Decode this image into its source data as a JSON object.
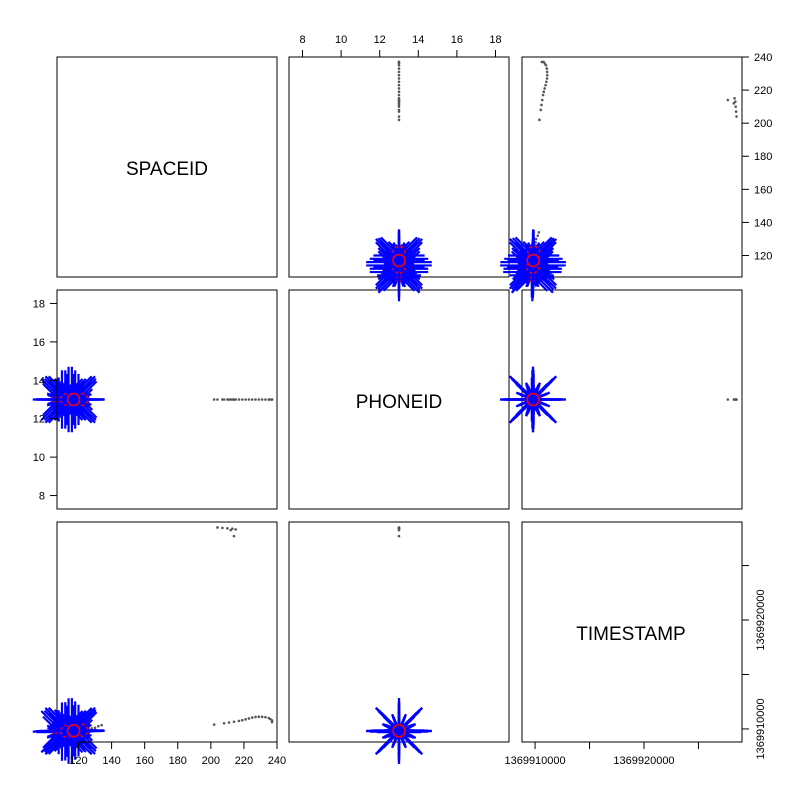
{
  "chart_data": {
    "type": "scatter",
    "variables": [
      "SPACEID",
      "PHONEID",
      "TIMESTAMP"
    ],
    "ranges": {
      "SPACEID": [
        107,
        240
      ],
      "PHONEID": [
        7.3,
        18.7
      ],
      "TIMESTAMP": [
        1369908800,
        1369929000
      ]
    },
    "ticks": {
      "SPACEID": [
        120,
        140,
        160,
        180,
        200,
        220,
        240
      ],
      "PHONEID": [
        8,
        10,
        12,
        14,
        16,
        18
      ],
      "TIMESTAMP": [
        1369910000,
        1369915000,
        1369920000,
        1369925000
      ]
    },
    "tick_labels": {
      "SPACEID": [
        "120",
        "140",
        "160",
        "180",
        "200",
        "220",
        "240"
      ],
      "PHONEID": [
        "8",
        "10",
        "12",
        "14",
        "16",
        "18"
      ],
      "TIMESTAMP": [
        "1369910000",
        "1369920000"
      ]
    },
    "timestamp_labeled_ticks": [
      1369910000,
      1369920000
    ],
    "colors": {
      "points": "#555555",
      "sunflower": "#0000ff",
      "center": "#ff0000"
    },
    "cluster_center": {
      "SPACEID": 116,
      "PHONEID": 13,
      "TIMESTAMP": 1369909800
    },
    "sparse_points": [
      {
        "SPACEID": 202,
        "PHONEID": 13,
        "TIMESTAMP": 1369910400
      },
      {
        "SPACEID": 208,
        "PHONEID": 13,
        "TIMESTAMP": 1369910520
      },
      {
        "SPACEID": 211,
        "PHONEID": 13,
        "TIMESTAMP": 1369910590
      },
      {
        "SPACEID": 214,
        "PHONEID": 13,
        "TIMESTAMP": 1369910660
      },
      {
        "SPACEID": 217,
        "PHONEID": 13,
        "TIMESTAMP": 1369910740
      },
      {
        "SPACEID": 219,
        "PHONEID": 13,
        "TIMESTAMP": 1369910800
      },
      {
        "SPACEID": 221,
        "PHONEID": 13,
        "TIMESTAMP": 1369910880
      },
      {
        "SPACEID": 223,
        "PHONEID": 13,
        "TIMESTAMP": 1369910960
      },
      {
        "SPACEID": 225,
        "PHONEID": 13,
        "TIMESTAMP": 1369911040
      },
      {
        "SPACEID": 227,
        "PHONEID": 13,
        "TIMESTAMP": 1369911100
      },
      {
        "SPACEID": 229,
        "PHONEID": 13,
        "TIMESTAMP": 1369911120
      },
      {
        "SPACEID": 231,
        "PHONEID": 13,
        "TIMESTAMP": 1369911110
      },
      {
        "SPACEID": 233,
        "PHONEID": 13,
        "TIMESTAMP": 1369911080
      },
      {
        "SPACEID": 235,
        "PHONEID": 13,
        "TIMESTAMP": 1369911000
      },
      {
        "SPACEID": 236,
        "PHONEID": 13,
        "TIMESTAMP": 1369910900
      },
      {
        "SPACEID": 237,
        "PHONEID": 13,
        "TIMESTAMP": 1369910780
      },
      {
        "SPACEID": 237,
        "PHONEID": 13,
        "TIMESTAMP": 1369910620
      },
      {
        "SPACEID": 204,
        "PHONEID": 13,
        "TIMESTAMP": 1369928500
      },
      {
        "SPACEID": 207,
        "PHONEID": 13,
        "TIMESTAMP": 1369928460
      },
      {
        "SPACEID": 210,
        "PHONEID": 13,
        "TIMESTAMP": 1369928420
      },
      {
        "SPACEID": 213,
        "PHONEID": 13,
        "TIMESTAMP": 1369928390
      },
      {
        "SPACEID": 215,
        "PHONEID": 13,
        "TIMESTAMP": 1369928320
      },
      {
        "SPACEID": 212,
        "PHONEID": 13,
        "TIMESTAMP": 1369928250
      },
      {
        "SPACEID": 214,
        "PHONEID": 13,
        "TIMESTAMP": 1369927700
      },
      {
        "SPACEID": 122,
        "PHONEID": 13,
        "TIMESTAMP": 1369909900
      },
      {
        "SPACEID": 124,
        "PHONEID": 13,
        "TIMESTAMP": 1369909950
      },
      {
        "SPACEID": 126,
        "PHONEID": 13,
        "TIMESTAMP": 1369910000
      },
      {
        "SPACEID": 128,
        "PHONEID": 13,
        "TIMESTAMP": 1369910050
      },
      {
        "SPACEID": 130,
        "PHONEID": 13,
        "TIMESTAMP": 1369910100
      },
      {
        "SPACEID": 132,
        "PHONEID": 13,
        "TIMESTAMP": 1369910250
      },
      {
        "SPACEID": 134,
        "PHONEID": 13,
        "TIMESTAMP": 1369910350
      }
    ],
    "sunflowers": [
      {
        "SPACEID": 108,
        "PHONEID": 13,
        "TIMESTAMP": 1369909700,
        "petals": 10
      },
      {
        "SPACEID": 110,
        "PHONEID": 13,
        "TIMESTAMP": 1369909750,
        "petals": 14
      },
      {
        "SPACEID": 112,
        "PHONEID": 13,
        "TIMESTAMP": 1369909780,
        "petals": 14
      },
      {
        "SPACEID": 114,
        "PHONEID": 13,
        "TIMESTAMP": 1369909800,
        "petals": 16
      },
      {
        "SPACEID": 116,
        "PHONEID": 13,
        "TIMESTAMP": 1369909820,
        "petals": 16
      },
      {
        "SPACEID": 118,
        "PHONEID": 13,
        "TIMESTAMP": 1369909850,
        "petals": 14
      },
      {
        "SPACEID": 120,
        "PHONEID": 13,
        "TIMESTAMP": 1369909870,
        "petals": 12
      },
      {
        "SPACEID": 122,
        "PHONEID": 13,
        "TIMESTAMP": 1369909880,
        "petals": 6
      },
      {
        "SPACEID": 113,
        "PHONEID": 13,
        "TIMESTAMP": 1369909780,
        "petals": 12
      },
      {
        "SPACEID": 117,
        "PHONEID": 13,
        "TIMESTAMP": 1369909830,
        "petals": 12
      }
    ]
  }
}
